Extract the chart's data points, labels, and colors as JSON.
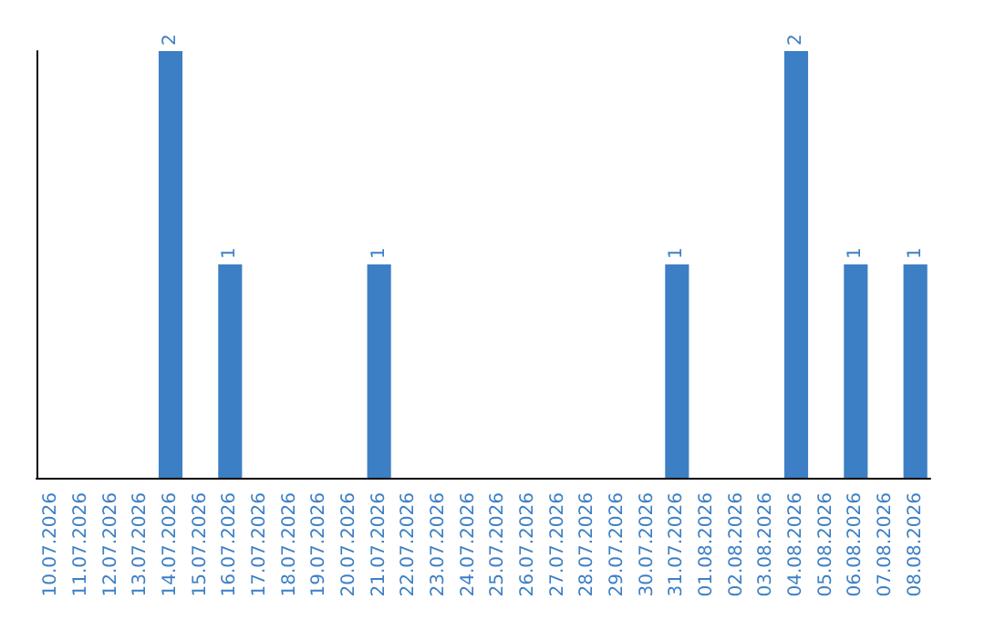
{
  "chart_data": {
    "type": "bar",
    "categories": [
      "10.07.2026",
      "11.07.2026",
      "12.07.2026",
      "13.07.2026",
      "14.07.2026",
      "15.07.2026",
      "16.07.2026",
      "17.07.2026",
      "18.07.2026",
      "19.07.2026",
      "20.07.2026",
      "21.07.2026",
      "22.07.2026",
      "23.07.2026",
      "24.07.2026",
      "25.07.2026",
      "26.07.2026",
      "27.07.2026",
      "28.07.2026",
      "29.07.2026",
      "30.07.2026",
      "31.07.2026",
      "01.08.2026",
      "02.08.2026",
      "03.08.2026",
      "04.08.2026",
      "05.08.2026",
      "06.08.2026",
      "07.08.2026",
      "08.08.2026"
    ],
    "values": [
      0,
      0,
      0,
      0,
      2,
      0,
      1,
      0,
      0,
      0,
      0,
      1,
      0,
      0,
      0,
      0,
      0,
      0,
      0,
      0,
      0,
      1,
      0,
      0,
      0,
      2,
      0,
      1,
      0,
      1
    ],
    "value_labels": [
      null,
      null,
      null,
      null,
      "2",
      null,
      "1",
      null,
      null,
      null,
      null,
      "1",
      null,
      null,
      null,
      null,
      null,
      null,
      null,
      null,
      null,
      "1",
      null,
      null,
      null,
      "2",
      null,
      "1",
      null,
      "1"
    ],
    "color": "#3d7fc4",
    "ylim": [
      0,
      2
    ],
    "tick_labels": "x"
  }
}
